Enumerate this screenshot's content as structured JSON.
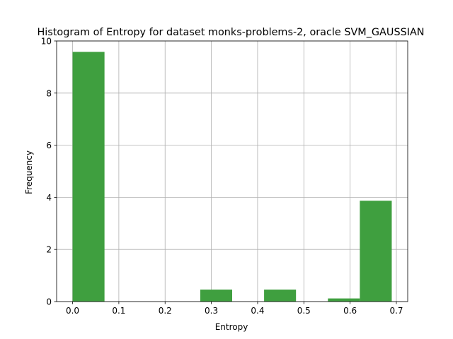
{
  "chart_data": {
    "type": "bar",
    "title": "Histogram of Entropy for dataset monks-problems-2, oracle SVM_GAUSSIAN",
    "xlabel": "Entropy",
    "ylabel": "Frequency",
    "xlim": [
      -0.0345,
      0.7245
    ],
    "ylim": [
      0,
      10
    ],
    "xticks": [
      0.0,
      0.1,
      0.2,
      0.3,
      0.4,
      0.5,
      0.6,
      0.7
    ],
    "xtick_labels": [
      "0.0",
      "0.1",
      "0.2",
      "0.3",
      "0.4",
      "0.5",
      "0.6",
      "0.7"
    ],
    "yticks": [
      0,
      2,
      4,
      6,
      8,
      10
    ],
    "ytick_labels": [
      "0",
      "2",
      "4",
      "6",
      "8",
      "10"
    ],
    "grid": true,
    "bar_color": "#3f9f3f",
    "bins": [
      {
        "x0": 0.0,
        "x1": 0.069,
        "value": 9.58
      },
      {
        "x0": 0.069,
        "x1": 0.138,
        "value": 0
      },
      {
        "x0": 0.138,
        "x1": 0.207,
        "value": 0
      },
      {
        "x0": 0.207,
        "x1": 0.276,
        "value": 0
      },
      {
        "x0": 0.276,
        "x1": 0.345,
        "value": 0.46
      },
      {
        "x0": 0.345,
        "x1": 0.414,
        "value": 0
      },
      {
        "x0": 0.414,
        "x1": 0.483,
        "value": 0.46
      },
      {
        "x0": 0.483,
        "x1": 0.552,
        "value": 0
      },
      {
        "x0": 0.552,
        "x1": 0.621,
        "value": 0.12
      },
      {
        "x0": 0.621,
        "x1": 0.69,
        "value": 3.87
      }
    ]
  }
}
